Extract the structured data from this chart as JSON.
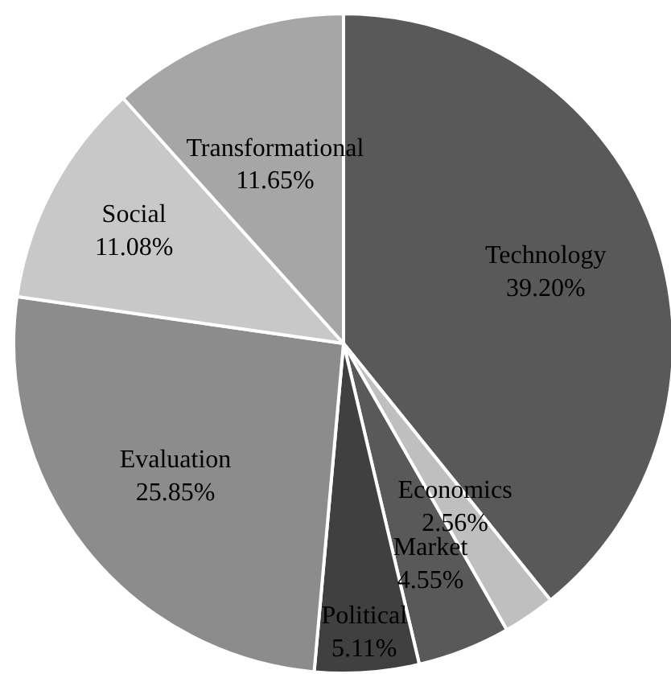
{
  "chart_data": {
    "type": "pie",
    "categories": [
      "Technology",
      "Economics",
      "Market",
      "Political",
      "Evaluation",
      "Social",
      "Transformational"
    ],
    "values": [
      39.2,
      2.56,
      4.55,
      5.11,
      25.85,
      11.08,
      11.65
    ],
    "value_labels": [
      "39.20%",
      "2.56%",
      "4.55%",
      "5.11%",
      "25.85%",
      "11.08%",
      "11.65%"
    ],
    "colors": [
      "#595959",
      "#bfbfbf",
      "#595959",
      "#404040",
      "#8c8c8c",
      "#c8c8c8",
      "#a6a6a6"
    ]
  }
}
